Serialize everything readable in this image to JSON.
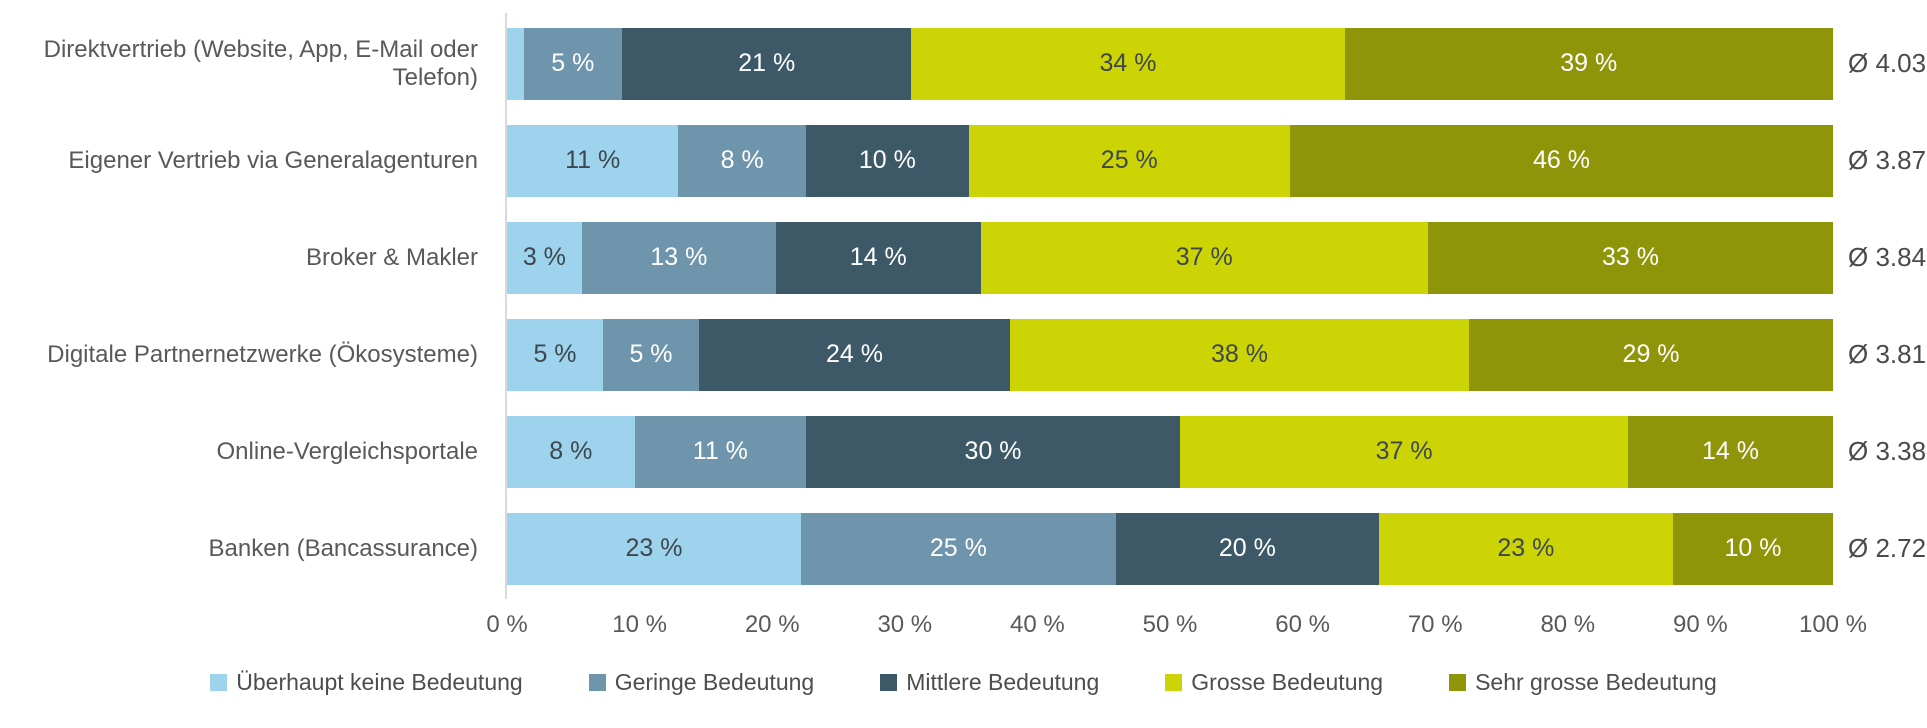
{
  "chart_data": {
    "type": "bar",
    "orientation": "horizontal_stacked",
    "unit": "percent",
    "grid": "off",
    "legend_position": "bottom",
    "x_axis": {
      "min": 0,
      "max": 100,
      "tick_labels": [
        "0 %",
        "10 %",
        "20 %",
        "30 %",
        "40 %",
        "50 %",
        "60 %",
        "70 %",
        "80 %",
        "90 %",
        "100 %"
      ]
    },
    "legend": [
      {
        "label": "Überhaupt keine Bedeutung",
        "color": "#9ed3ee",
        "value_text_color": "#3d474c"
      },
      {
        "label": "Geringe Bedeutung",
        "color": "#6e95ab",
        "value_text_color": "#ffffff"
      },
      {
        "label": "Mittlere Bedeutung",
        "color": "#3d5968",
        "value_text_color": "#ffffff"
      },
      {
        "label": "Grosse Bedeutung",
        "color": "#ccd405",
        "value_text_color": "#3d474c"
      },
      {
        "label": "Sehr grosse Bedeutung",
        "color": "#8e9508",
        "value_text_color": "#ffffff"
      }
    ],
    "rows": [
      {
        "category": "Direktvertrieb (Website, App, E-Mail oder Telefon)",
        "values": [
          1.5,
          5,
          21,
          34,
          39
        ],
        "value_labels": [
          "",
          "5 %",
          "21 %",
          "34 %",
          "39 %"
        ],
        "average": 4.03,
        "average_label": "Ø 4.03"
      },
      {
        "category": "Eigener Vertrieb via Generalagenturen",
        "values": [
          11,
          8,
          10,
          25,
          46
        ],
        "value_labels": [
          "11 %",
          "8 %",
          "10 %",
          "25 %",
          "46 %"
        ],
        "average": 3.87,
        "average_label": "Ø 3.87"
      },
      {
        "category": "Broker & Makler",
        "values": [
          3,
          13,
          14,
          37,
          33
        ],
        "value_labels": [
          "3 %",
          "13 %",
          "14 %",
          "37 %",
          "33 %"
        ],
        "average": 3.84,
        "average_label": "Ø 3.84"
      },
      {
        "category": "Digitale Partnernetzwerke (Ökosysteme)",
        "values": [
          5,
          5,
          24,
          38,
          29
        ],
        "value_labels": [
          "5 %",
          "5 %",
          "24 %",
          "38 %",
          "29 %"
        ],
        "average": 3.81,
        "average_label": "Ø 3.81"
      },
      {
        "category": "Online-Vergleichsportale",
        "values": [
          8,
          11,
          30,
          37,
          14
        ],
        "value_labels": [
          "8 %",
          "11 %",
          "30 %",
          "37 %",
          "14 %"
        ],
        "average": 3.38,
        "average_label": "Ø 3.38"
      },
      {
        "category": "Banken (Bancassurance)",
        "values": [
          23,
          25,
          20,
          23,
          10
        ],
        "value_labels": [
          "23 %",
          "25 %",
          "20 %",
          "23 %",
          "10 %"
        ],
        "average": 2.72,
        "average_label": "Ø 2.72"
      }
    ],
    "colors": {
      "axis_line": "#d9d9d9",
      "category_text": "#595959",
      "tick_text": "#595959",
      "average_text": "#4a4a4a",
      "legend_text": "#4d4d4d",
      "background": "#ffffff"
    }
  }
}
